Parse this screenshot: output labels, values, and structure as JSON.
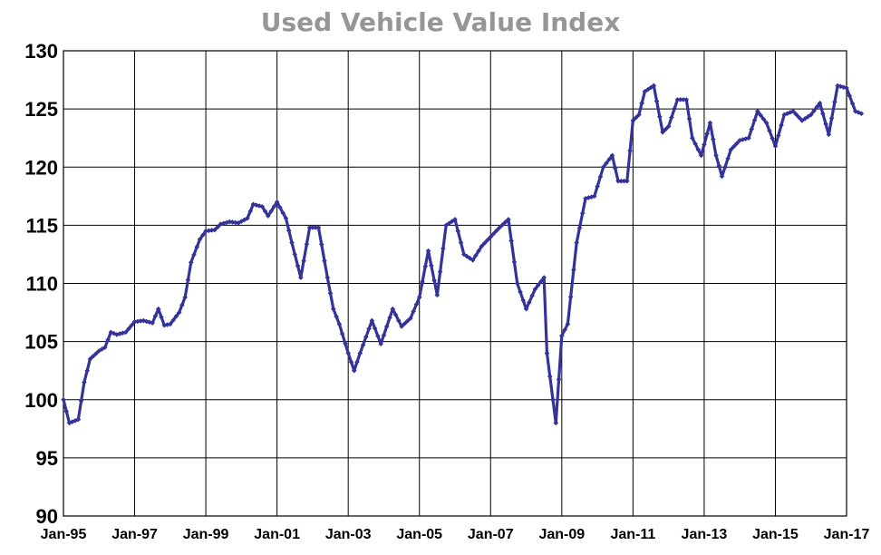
{
  "chart_data": {
    "type": "line",
    "title": "Used Vehicle Value Index",
    "xlabel": "",
    "ylabel": "",
    "ylim": [
      90,
      130
    ],
    "yticks": [
      90,
      95,
      100,
      105,
      110,
      115,
      120,
      125,
      130
    ],
    "xticks": [
      "Jan-95",
      "Jan-97",
      "Jan-99",
      "Jan-01",
      "Jan-03",
      "Jan-05",
      "Jan-07",
      "Jan-09",
      "Jan-11",
      "Jan-13",
      "Jan-15",
      "Jan-17"
    ],
    "x_start": "1995-01",
    "x_end": "2017-01",
    "grid": true,
    "legend": "none",
    "series_color": "#333399",
    "series": [
      {
        "name": "",
        "points": [
          [
            "1995-01",
            100.0
          ],
          [
            "1995-03",
            98.0
          ],
          [
            "1995-06",
            98.3
          ],
          [
            "1995-08",
            101.5
          ],
          [
            "1995-10",
            103.5
          ],
          [
            "1996-01",
            104.2
          ],
          [
            "1996-03",
            104.5
          ],
          [
            "1996-05",
            105.8
          ],
          [
            "1996-07",
            105.6
          ],
          [
            "1996-10",
            105.8
          ],
          [
            "1997-01",
            106.7
          ],
          [
            "1997-04",
            106.8
          ],
          [
            "1997-07",
            106.6
          ],
          [
            "1997-09",
            107.8
          ],
          [
            "1997-11",
            106.4
          ],
          [
            "1998-01",
            106.5
          ],
          [
            "1998-04",
            107.5
          ],
          [
            "1998-06",
            108.8
          ],
          [
            "1998-08",
            111.8
          ],
          [
            "1998-11",
            113.8
          ],
          [
            "1999-01",
            114.5
          ],
          [
            "1999-04",
            114.6
          ],
          [
            "1999-06",
            115.1
          ],
          [
            "1999-09",
            115.3
          ],
          [
            "1999-12",
            115.2
          ],
          [
            "2000-03",
            115.6
          ],
          [
            "2000-05",
            116.8
          ],
          [
            "2000-08",
            116.6
          ],
          [
            "2000-10",
            115.8
          ],
          [
            "2001-01",
            117.0
          ],
          [
            "2001-04",
            115.6
          ],
          [
            "2001-06",
            113.5
          ],
          [
            "2001-09",
            110.5
          ],
          [
            "2001-12",
            114.8
          ],
          [
            "2002-03",
            114.8
          ],
          [
            "2002-06",
            110.5
          ],
          [
            "2002-08",
            107.8
          ],
          [
            "2002-10",
            106.5
          ],
          [
            "2003-01",
            104.0
          ],
          [
            "2003-03",
            102.5
          ],
          [
            "2003-05",
            104.0
          ],
          [
            "2003-09",
            106.8
          ],
          [
            "2003-12",
            104.8
          ],
          [
            "2004-04",
            107.8
          ],
          [
            "2004-07",
            106.3
          ],
          [
            "2004-10",
            107.0
          ],
          [
            "2005-01",
            108.8
          ],
          [
            "2005-04",
            112.8
          ],
          [
            "2005-07",
            109.0
          ],
          [
            "2005-10",
            115.0
          ],
          [
            "2006-01",
            115.5
          ],
          [
            "2006-04",
            112.5
          ],
          [
            "2006-07",
            112.0
          ],
          [
            "2006-10",
            113.2
          ],
          [
            "2007-01",
            114.0
          ],
          [
            "2007-04",
            114.8
          ],
          [
            "2007-07",
            115.5
          ],
          [
            "2007-10",
            110.0
          ],
          [
            "2008-01",
            107.8
          ],
          [
            "2008-04",
            109.5
          ],
          [
            "2008-07",
            110.5
          ],
          [
            "2008-08",
            104.0
          ],
          [
            "2008-11",
            98.0
          ],
          [
            "2009-01",
            105.5
          ],
          [
            "2009-03",
            106.5
          ],
          [
            "2009-06",
            113.5
          ],
          [
            "2009-09",
            117.3
          ],
          [
            "2009-12",
            117.5
          ],
          [
            "2010-03",
            120.0
          ],
          [
            "2010-06",
            121.0
          ],
          [
            "2010-08",
            118.8
          ],
          [
            "2010-11",
            118.8
          ],
          [
            "2011-01",
            124.0
          ],
          [
            "2011-03",
            124.5
          ],
          [
            "2011-05",
            126.5
          ],
          [
            "2011-08",
            127.0
          ],
          [
            "2011-11",
            123.0
          ],
          [
            "2012-01",
            123.5
          ],
          [
            "2012-04",
            125.8
          ],
          [
            "2012-07",
            125.8
          ],
          [
            "2012-09",
            122.5
          ],
          [
            "2012-12",
            121.0
          ],
          [
            "2013-03",
            123.8
          ],
          [
            "2013-05",
            121.0
          ],
          [
            "2013-07",
            119.2
          ],
          [
            "2013-10",
            121.5
          ],
          [
            "2014-01",
            122.3
          ],
          [
            "2014-04",
            122.5
          ],
          [
            "2014-07",
            124.8
          ],
          [
            "2014-10",
            123.8
          ],
          [
            "2015-01",
            121.8
          ],
          [
            "2015-04",
            124.5
          ],
          [
            "2015-07",
            124.8
          ],
          [
            "2015-10",
            124.0
          ],
          [
            "2016-01",
            124.5
          ],
          [
            "2016-04",
            125.5
          ],
          [
            "2016-07",
            122.8
          ],
          [
            "2016-10",
            127.0
          ],
          [
            "2017-01",
            126.8
          ],
          [
            "2017-04",
            124.8
          ],
          [
            "2017-06",
            124.6
          ]
        ]
      }
    ]
  }
}
